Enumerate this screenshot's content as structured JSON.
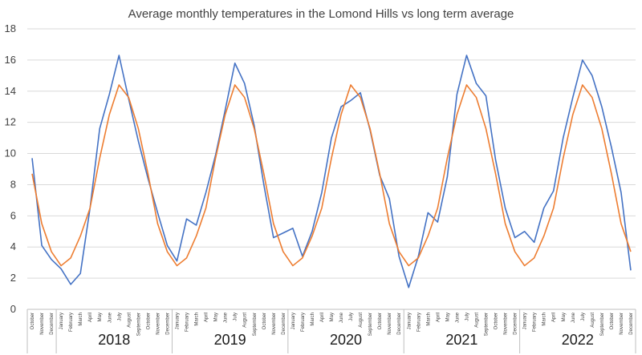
{
  "chart_data": {
    "type": "line",
    "title": "Average monthly temperatures in the Lomond Hills vs long term average",
    "ylim": [
      0,
      18
    ],
    "yticks": [
      0,
      2,
      4,
      6,
      8,
      10,
      12,
      14,
      16,
      18
    ],
    "grid": true,
    "legend": "none",
    "colors": {
      "series1": "#4472C4",
      "series2": "#ED7D31",
      "grid": "#d9d9d9"
    },
    "categories": [
      "October",
      "November",
      "December",
      "January",
      "February",
      "March",
      "April",
      "May",
      "June",
      "July",
      "August",
      "September",
      "October",
      "November",
      "December",
      "January",
      "February",
      "March",
      "April",
      "May",
      "June",
      "July",
      "August",
      "September",
      "October",
      "November",
      "December",
      "January",
      "February",
      "March",
      "April",
      "May",
      "June",
      "July",
      "August",
      "September",
      "October",
      "November",
      "December",
      "January",
      "February",
      "March",
      "April",
      "May",
      "June",
      "July",
      "August",
      "September",
      "October",
      "November",
      "December",
      "January",
      "February",
      "March",
      "April",
      "May",
      "June",
      "July",
      "August",
      "September",
      "October",
      "November",
      "December"
    ],
    "year_groups": [
      {
        "label": "",
        "months": 3
      },
      {
        "label": "2018",
        "months": 12
      },
      {
        "label": "2019",
        "months": 12
      },
      {
        "label": "2020",
        "months": 12
      },
      {
        "label": "2021",
        "months": 12
      },
      {
        "label": "2022",
        "months": 12
      }
    ],
    "series": [
      {
        "values": [
          9.7,
          4.1,
          3.2,
          2.6,
          1.6,
          2.3,
          6.5,
          11.6,
          13.8,
          16.3,
          13.5,
          10.8,
          8.4,
          6.2,
          4.1,
          3.1,
          5.8,
          5.4,
          7.5,
          9.9,
          12.8,
          15.8,
          14.5,
          11.8,
          8.0,
          4.6,
          4.9,
          5.2,
          3.4,
          5.0,
          7.5,
          11.0,
          13.0,
          13.4,
          13.9,
          11.5,
          8.6,
          7.1,
          3.4,
          1.4,
          3.4,
          6.2,
          5.6,
          8.5,
          13.8,
          16.3,
          14.5,
          13.7,
          9.6,
          6.5,
          4.6,
          5.0,
          4.3,
          6.5,
          7.6,
          11.0,
          13.6,
          16.0,
          15.0,
          13.0,
          10.4,
          7.5,
          2.5
        ]
      },
      {
        "values": [
          8.7,
          5.5,
          3.7,
          2.8,
          3.3,
          4.7,
          6.5,
          9.7,
          12.5,
          14.4,
          13.6,
          11.6,
          8.7,
          5.5,
          3.7,
          2.8,
          3.3,
          4.7,
          6.5,
          9.7,
          12.5,
          14.4,
          13.6,
          11.6,
          8.7,
          5.5,
          3.7,
          2.8,
          3.3,
          4.7,
          6.5,
          9.7,
          12.5,
          14.4,
          13.6,
          11.6,
          8.7,
          5.5,
          3.7,
          2.8,
          3.3,
          4.7,
          6.5,
          9.7,
          12.5,
          14.4,
          13.6,
          11.6,
          8.7,
          5.5,
          3.7,
          2.8,
          3.3,
          4.7,
          6.5,
          9.7,
          12.5,
          14.4,
          13.6,
          11.6,
          8.7,
          5.5,
          3.7
        ]
      }
    ]
  }
}
